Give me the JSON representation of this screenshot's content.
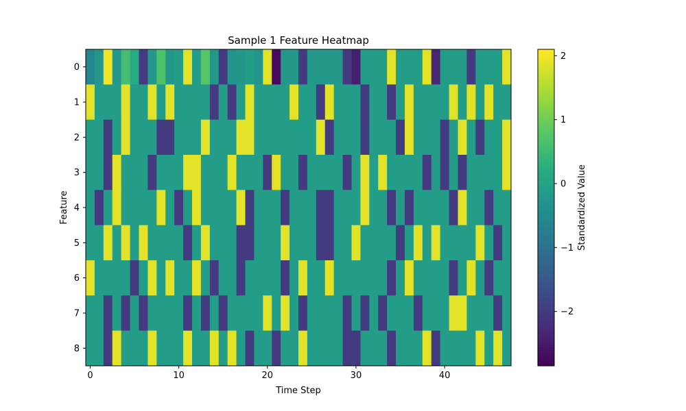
{
  "chart_data": {
    "type": "heatmap",
    "title": "Sample 1 Feature Heatmap",
    "xlabel": "Time Step",
    "ylabel": "Feature",
    "colorbar_label": "Standardized Value",
    "colormap": "viridis",
    "vmin": -2.85,
    "vmax": 2.1,
    "x_range": [
      -0.5,
      47.5
    ],
    "y_range": [
      -0.5,
      8.5
    ],
    "x_ticks": [
      0,
      10,
      20,
      30,
      40
    ],
    "y_ticks": [
      0,
      1,
      2,
      3,
      4,
      5,
      6,
      7,
      8
    ],
    "colorbar_ticks": [
      2,
      1,
      0,
      -1,
      -2
    ],
    "colorbar_tick_labels": [
      "2",
      "1",
      "0",
      "−1",
      "−2"
    ],
    "rows": [
      {
        "feature": 0,
        "values": [
          -0.6,
          -0.2,
          2.0,
          -0.2,
          0.6,
          0.2,
          -2.0,
          -0.2,
          0.7,
          -0.2,
          -0.1,
          1.9,
          -0.1,
          0.8,
          -0.2,
          -2.0,
          -0.3,
          -0.2,
          -0.1,
          -0.3,
          1.9,
          -2.7,
          -0.2,
          -0.2,
          -2.0,
          -0.2,
          -0.2,
          -0.2,
          -0.2,
          -2.0,
          -2.4,
          -0.1,
          -0.1,
          -0.1,
          1.9,
          -0.1,
          -0.1,
          -0.1,
          1.9,
          -2.3,
          -0.1,
          -0.1,
          -0.1,
          -2.0,
          -0.1,
          -0.1,
          -0.1,
          1.9
        ]
      },
      {
        "feature": 1,
        "values": [
          1.9,
          -0.1,
          -0.1,
          -0.1,
          1.9,
          -0.1,
          -0.1,
          1.9,
          -0.1,
          1.9,
          -0.1,
          -0.1,
          -0.1,
          -0.1,
          -2.0,
          -0.1,
          -2.0,
          -0.1,
          1.9,
          -0.1,
          -0.1,
          -0.1,
          -0.1,
          1.9,
          -0.1,
          -0.1,
          -2.0,
          1.9,
          -0.1,
          -0.1,
          -0.1,
          -2.0,
          -0.1,
          -0.1,
          -2.0,
          -0.1,
          1.9,
          -0.1,
          -0.1,
          -0.1,
          -0.1,
          1.9,
          -0.1,
          1.9,
          -0.1,
          1.9,
          -0.1,
          -0.1
        ]
      },
      {
        "feature": 2,
        "values": [
          -0.1,
          -0.1,
          -2.0,
          -0.1,
          1.9,
          -0.1,
          -0.1,
          -0.1,
          -2.0,
          -2.0,
          -0.1,
          -0.1,
          -0.1,
          1.9,
          -0.1,
          -0.1,
          -0.1,
          1.9,
          1.9,
          -0.1,
          -0.1,
          -0.1,
          -0.1,
          -0.1,
          -0.1,
          -0.1,
          1.9,
          -2.0,
          -0.1,
          -0.1,
          -0.1,
          -2.0,
          -0.1,
          -0.1,
          -0.1,
          -2.0,
          1.9,
          -0.1,
          -0.1,
          -0.1,
          -2.0,
          -0.1,
          1.9,
          -0.1,
          -2.0,
          -0.1,
          -0.1,
          1.9
        ]
      },
      {
        "feature": 3,
        "values": [
          -0.1,
          -0.1,
          -2.0,
          1.9,
          -0.1,
          -0.1,
          -0.1,
          -2.0,
          -0.1,
          -0.1,
          -0.1,
          1.9,
          1.9,
          -0.1,
          -0.1,
          -0.1,
          1.9,
          -0.1,
          -0.1,
          -0.1,
          -2.0,
          1.9,
          -0.1,
          -0.1,
          -2.0,
          -0.1,
          -0.1,
          -0.1,
          -0.1,
          -2.0,
          -0.1,
          1.9,
          -0.1,
          1.9,
          -0.1,
          -0.1,
          -0.1,
          -0.1,
          -2.0,
          -0.1,
          -2.0,
          -0.1,
          -2.0,
          -0.1,
          -0.1,
          -0.1,
          -0.1,
          1.9
        ]
      },
      {
        "feature": 4,
        "values": [
          -0.1,
          -2.0,
          -0.1,
          1.9,
          -0.1,
          -0.1,
          -0.1,
          -0.1,
          1.9,
          -0.1,
          -2.0,
          -0.1,
          1.9,
          -0.1,
          -0.1,
          -0.1,
          -0.1,
          1.9,
          -2.0,
          -0.1,
          -0.1,
          -0.1,
          -2.0,
          -0.1,
          -0.1,
          -0.1,
          -2.0,
          -2.0,
          -0.1,
          -0.1,
          -0.1,
          1.9,
          -0.1,
          -0.1,
          -2.0,
          -0.1,
          -2.0,
          -0.1,
          -0.1,
          -0.1,
          -0.1,
          -2.0,
          1.9,
          -0.1,
          -0.1,
          -2.0,
          -0.1,
          -0.1
        ]
      },
      {
        "feature": 5,
        "values": [
          -0.1,
          -0.1,
          1.9,
          -0.1,
          1.9,
          -0.1,
          1.9,
          -0.1,
          -0.1,
          -0.1,
          -0.1,
          -2.0,
          -0.1,
          1.9,
          -0.1,
          -0.1,
          -0.1,
          -2.0,
          -2.0,
          -0.1,
          -0.1,
          -0.1,
          1.9,
          -0.1,
          -0.1,
          -0.1,
          -2.0,
          -2.0,
          -0.1,
          -0.1,
          1.9,
          -0.1,
          -0.1,
          -0.1,
          -0.1,
          -2.0,
          -0.1,
          1.9,
          -0.1,
          1.9,
          -0.1,
          -0.1,
          -0.1,
          -0.1,
          1.9,
          -0.1,
          -2.0,
          -0.1
        ]
      },
      {
        "feature": 6,
        "values": [
          1.9,
          -0.1,
          -0.1,
          -0.1,
          -0.1,
          -2.0,
          -0.1,
          1.9,
          -0.1,
          1.9,
          -0.1,
          -0.1,
          1.9,
          -0.1,
          -2.0,
          -0.1,
          -0.1,
          -2.0,
          -0.1,
          -0.1,
          -0.1,
          -0.1,
          -2.0,
          -0.1,
          1.9,
          -0.1,
          -0.1,
          1.9,
          -0.1,
          -0.1,
          -0.1,
          -0.1,
          -0.1,
          -0.1,
          -2.0,
          -0.1,
          1.9,
          -0.1,
          -0.1,
          -0.1,
          -0.1,
          -2.0,
          -0.1,
          1.9,
          -0.1,
          -2.0,
          -0.1,
          -0.1
        ]
      },
      {
        "feature": 7,
        "values": [
          -0.1,
          -0.1,
          -2.0,
          -0.1,
          -2.0,
          -0.1,
          -2.0,
          -0.1,
          -0.1,
          -0.1,
          -0.1,
          -2.0,
          -0.1,
          -2.0,
          -0.1,
          -2.0,
          -0.1,
          -0.1,
          -0.1,
          -0.1,
          1.9,
          -0.1,
          1.9,
          -0.1,
          -2.0,
          -0.1,
          -0.1,
          -0.1,
          -0.1,
          -2.0,
          -0.1,
          -2.0,
          -0.1,
          -2.0,
          -0.1,
          -0.1,
          -0.1,
          -2.0,
          -0.1,
          -0.1,
          -0.1,
          1.9,
          1.9,
          -0.1,
          -0.1,
          -0.1,
          -2.0,
          -0.1
        ]
      },
      {
        "feature": 8,
        "values": [
          -0.1,
          -0.1,
          -2.0,
          1.9,
          -0.1,
          -0.1,
          -0.1,
          1.9,
          -0.1,
          -0.1,
          -0.1,
          1.9,
          -0.1,
          -0.1,
          1.9,
          -0.1,
          1.9,
          -0.1,
          -2.0,
          -0.1,
          -0.1,
          -2.0,
          -0.1,
          -0.1,
          1.9,
          -0.1,
          -0.1,
          -0.1,
          -0.1,
          -2.0,
          -2.0,
          -0.1,
          -0.1,
          -0.1,
          -2.0,
          -0.1,
          -0.1,
          -0.1,
          1.9,
          -2.0,
          -0.1,
          -0.1,
          -0.1,
          -0.1,
          1.9,
          -0.1,
          1.9,
          -0.1
        ]
      }
    ]
  }
}
